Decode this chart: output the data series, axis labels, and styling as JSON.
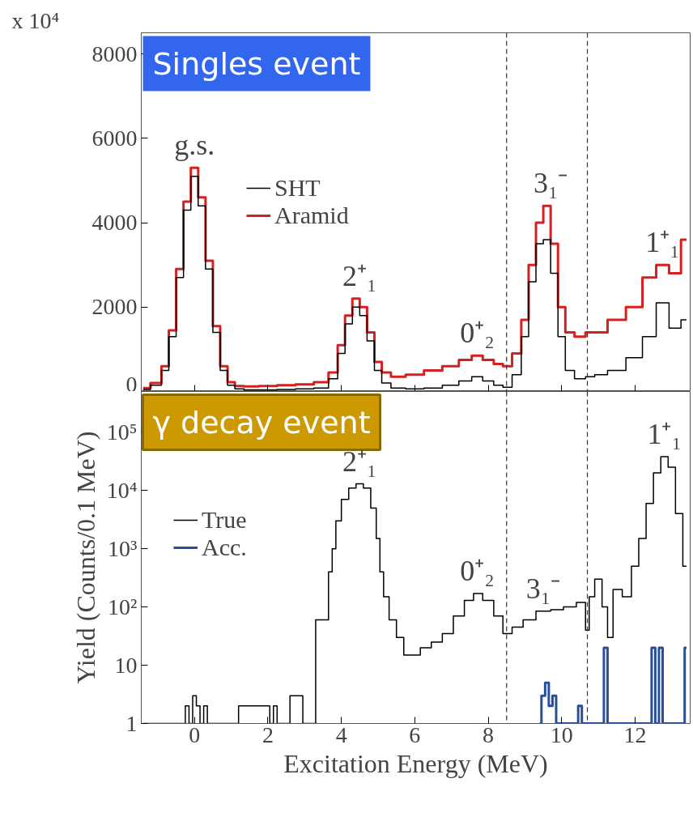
{
  "chart_data": [
    {
      "type": "step",
      "title": "Singles event",
      "xlim": [
        -1.45,
        13.5
      ],
      "xticks": [
        0,
        2,
        4,
        6,
        8,
        10,
        12
      ],
      "ylim": [
        0,
        8500
      ],
      "yticks": [
        0,
        2000,
        4000,
        6000,
        8000
      ],
      "tick_labels": "y",
      "grid": false,
      "legend": "top left",
      "series": [
        {
          "name": "Aramid",
          "color": "#d42020",
          "x": [
            -1.4,
            -1.0,
            -0.8,
            -0.6,
            -0.4,
            -0.2,
            0.0,
            0.2,
            0.4,
            0.6,
            0.8,
            1.0,
            1.2,
            1.5,
            2.0,
            2.5,
            3.0,
            3.5,
            3.8,
            4.0,
            4.2,
            4.4,
            4.6,
            4.8,
            5.0,
            5.2,
            5.5,
            6.0,
            6.5,
            7.0,
            7.4,
            7.7,
            8.0,
            8.3,
            8.5,
            8.8,
            9.0,
            9.2,
            9.4,
            9.6,
            9.8,
            10.0,
            10.2,
            10.5,
            10.8,
            11.0,
            11.5,
            12.0,
            12.4,
            12.75,
            13.1,
            13.4
          ],
          "values": [
            80,
            200,
            600,
            1450,
            2900,
            4500,
            5300,
            4600,
            3100,
            1550,
            600,
            220,
            130,
            120,
            130,
            150,
            170,
            220,
            450,
            1100,
            1800,
            2200,
            2000,
            1400,
            700,
            450,
            350,
            400,
            500,
            600,
            750,
            850,
            750,
            650,
            600,
            900,
            1700,
            3000,
            4000,
            4400,
            3500,
            2000,
            1400,
            1300,
            1400,
            1400,
            1700,
            2000,
            2700,
            3000,
            2800,
            3600
          ]
        },
        {
          "name": "SHT",
          "color": "#000000",
          "x": [
            -1.4,
            -1.0,
            -0.8,
            -0.6,
            -0.4,
            -0.2,
            0.0,
            0.2,
            0.4,
            0.6,
            0.8,
            1.0,
            1.2,
            1.5,
            2.0,
            2.5,
            3.0,
            3.5,
            3.8,
            4.0,
            4.2,
            4.4,
            4.6,
            4.8,
            5.0,
            5.2,
            5.5,
            6.0,
            6.5,
            7.0,
            7.4,
            7.7,
            8.0,
            8.3,
            8.5,
            8.8,
            9.0,
            9.2,
            9.4,
            9.6,
            9.8,
            10.0,
            10.2,
            10.5,
            10.8,
            11.0,
            11.5,
            12.0,
            12.4,
            12.75,
            13.1,
            13.4
          ],
          "values": [
            50,
            150,
            500,
            1300,
            2700,
            4300,
            5100,
            4400,
            2900,
            1400,
            500,
            150,
            60,
            40,
            40,
            50,
            60,
            80,
            300,
            900,
            1600,
            2000,
            1800,
            1200,
            500,
            200,
            80,
            60,
            80,
            150,
            250,
            350,
            250,
            150,
            100,
            400,
            1300,
            2600,
            3500,
            3600,
            2800,
            1300,
            500,
            300,
            350,
            400,
            500,
            800,
            1300,
            2100,
            1500,
            1700
          ]
        }
      ],
      "ref_lines": [
        {
          "axis": "x",
          "value": 8.5,
          "line_style": "dashed",
          "color": "#333333"
        },
        {
          "axis": "x",
          "value": 10.7,
          "line_style": "dashed",
          "color": "#333333"
        }
      ],
      "annotations": [
        "x 10⁴",
        {
          "text": "g.s.",
          "x": 0.0,
          "y": 5300
        },
        {
          "text": "2⁺₁",
          "x": 4.5,
          "y": 2200
        },
        {
          "text": "0⁺₂",
          "x": 7.7,
          "y": 850
        },
        {
          "text": "3₁⁻",
          "x": 9.7,
          "y": 4400
        },
        {
          "text": "1⁺₁",
          "x": 12.75,
          "y": 3000
        }
      ]
    },
    {
      "type": "step",
      "title": "γ decay event",
      "xlabel": "Excitation Energy (MeV)",
      "ylabel": "Yield (Counts/0.1 MeV)",
      "log": true,
      "xlim": [
        -1.45,
        13.5
      ],
      "xticks": [
        0,
        2,
        4,
        6,
        8,
        10,
        12
      ],
      "ylim": [
        1,
        500000
      ],
      "yticks": [
        1,
        10,
        {
          "value": 100,
          "label": "10²"
        },
        {
          "value": 1000,
          "label": "10³"
        },
        {
          "value": 10000,
          "label": "10⁴"
        },
        {
          "value": 100000,
          "label": "10⁵"
        }
      ],
      "grid": false,
      "legend": "left",
      "series": [
        {
          "name": "True",
          "color": "#000000",
          "x": [
            -1.4,
            -0.3,
            -0.2,
            -0.1,
            0.0,
            0.1,
            0.2,
            0.3,
            0.4,
            2.0,
            2.1,
            2.2,
            2.3,
            2.9,
            3.0,
            3.6,
            3.7,
            3.8,
            3.9,
            4.1,
            4.3,
            4.5,
            4.7,
            4.9,
            5.0,
            5.1,
            5.2,
            5.4,
            5.6,
            5.8,
            6.0,
            6.3,
            6.6,
            6.9,
            7.2,
            7.5,
            7.7,
            8.0,
            8.3,
            8.5,
            8.8,
            9.1,
            9.5,
            9.9,
            10.2,
            10.6,
            10.7,
            10.8,
            11.0,
            11.2,
            11.3,
            11.5,
            11.8,
            12.0,
            12.2,
            12.4,
            12.6,
            12.8,
            13.0,
            13.2,
            13.4
          ],
          "values": [
            1,
            1,
            2,
            1,
            3,
            2,
            1,
            2,
            1,
            2,
            1,
            2,
            1,
            3,
            1,
            60,
            400,
            1000,
            3000,
            7000,
            11000,
            13000,
            11000,
            5000,
            1500,
            400,
            150,
            60,
            30,
            15,
            15,
            20,
            25,
            35,
            70,
            130,
            170,
            130,
            70,
            35,
            45,
            60,
            85,
            90,
            100,
            120,
            40,
            150,
            300,
            100,
            30,
            200,
            150,
            500,
            1500,
            6000,
            20000,
            38000,
            25000,
            4000,
            500
          ]
        },
        {
          "name": "Acc.",
          "color": "#2a4f9a",
          "x": [
            9.4,
            9.5,
            9.6,
            9.7,
            9.8,
            9.9,
            10.4,
            10.5,
            10.6,
            11.1,
            11.2,
            11.3,
            12.4,
            12.5,
            12.6,
            12.7,
            12.8,
            13.3,
            13.4
          ],
          "values": [
            1,
            3,
            5,
            2,
            3,
            1,
            1,
            2,
            1,
            1,
            20,
            1,
            1,
            20,
            1,
            20,
            1,
            1,
            20
          ]
        }
      ],
      "ref_lines": [
        {
          "axis": "x",
          "value": 8.5,
          "line_style": "dashed",
          "color": "#333333"
        },
        {
          "axis": "x",
          "value": 10.7,
          "line_style": "dashed",
          "color": "#333333"
        }
      ],
      "annotations": [
        {
          "text": "2⁺₁",
          "x": 4.5,
          "y": 13000
        },
        {
          "text": "0⁺₂",
          "x": 7.7,
          "y": 170
        },
        {
          "text": "3₁⁻",
          "x": 9.5,
          "y": 85
        },
        {
          "text": "1⁺₁",
          "x": 12.8,
          "y": 38000
        }
      ]
    }
  ]
}
